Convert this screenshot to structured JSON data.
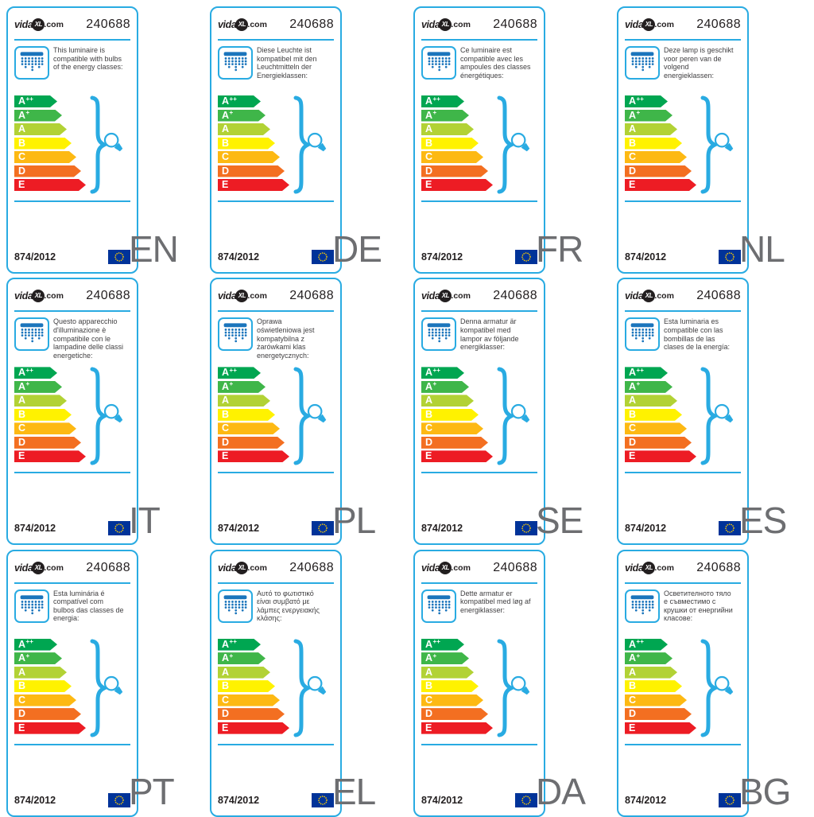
{
  "product_number": "240688",
  "regulation": "874/2012",
  "brand": {
    "prefix": "vida",
    "mark": "XL",
    "suffix": ".com"
  },
  "accent_color": "#29ABE2",
  "icon_color": "#1B75BC",
  "eu_flag": {
    "background": "#003399",
    "star_color": "#FFCC00"
  },
  "energy_classes": [
    {
      "label": "A",
      "sup": "++",
      "color": "#00A651"
    },
    {
      "label": "A",
      "sup": "+",
      "color": "#3FB649"
    },
    {
      "label": "A",
      "sup": "",
      "color": "#B2D235"
    },
    {
      "label": "B",
      "sup": "",
      "color": "#FFF200"
    },
    {
      "label": "C",
      "sup": "",
      "color": "#FDB913"
    },
    {
      "label": "D",
      "sup": "",
      "color": "#F36F21"
    },
    {
      "label": "E",
      "sup": "",
      "color": "#ED1C24"
    }
  ],
  "labels": [
    {
      "lang": "EN",
      "description": "This luminaire is compatible with bulbs of the energy classes:"
    },
    {
      "lang": "DE",
      "description": "Diese Leuchte ist kompatibel mit den Leuchtmitteln der Energieklassen:"
    },
    {
      "lang": "FR",
      "description": "Ce luminaire est compatible avec les ampoules des classes énergétiques:"
    },
    {
      "lang": "NL",
      "description": "Deze lamp is geschikt voor peren van de volgend energieklassen:"
    },
    {
      "lang": "IT",
      "description": "Questo apparecchio d'illuminazione è compatibile con le lampadine delle classi energetiche:"
    },
    {
      "lang": "PL",
      "description": "Oprawa oświetleniowa jest kompatybilna z żarówkami klas energetycznych:"
    },
    {
      "lang": "SE",
      "description": "Denna armatur är kompatibel med lampor av följande energiklasser:"
    },
    {
      "lang": "ES",
      "description": "Esta luminaria es compatible con las bombillas de las clases de la energía:"
    },
    {
      "lang": "PT",
      "description": "Esta luminária é compatível com bulbos das classes de energia:"
    },
    {
      "lang": "EL",
      "description": "Αυτό το φωτιστικό είναι συμβατό με λάμπες ενεργειακής κλάσης:"
    },
    {
      "lang": "DA",
      "description": "Dette armatur er kompatibel med løg af energiklasser:"
    },
    {
      "lang": "BG",
      "description": "Осветителното тяло е съвместимо с крушки от енергийни класове:"
    }
  ]
}
